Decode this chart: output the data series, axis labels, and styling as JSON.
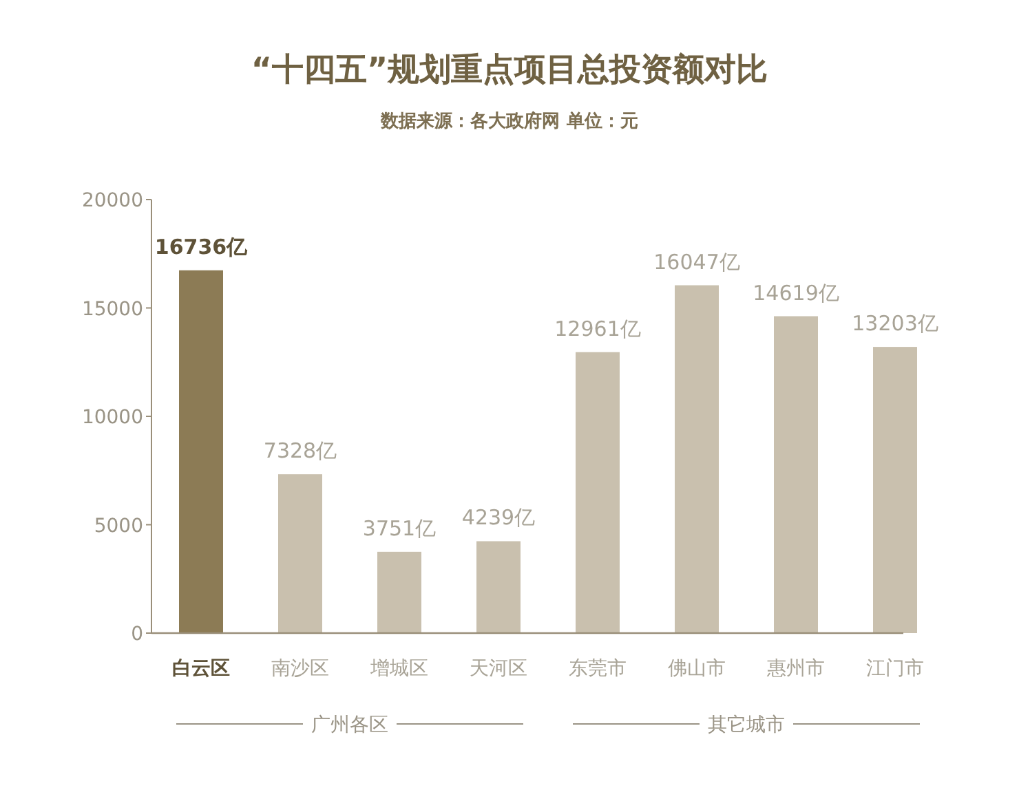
{
  "chart_data": {
    "type": "bar",
    "title": "“十四五”规划重点项目总投资额对比",
    "subtitle": "数据来源：各大政府网  单位：元",
    "categories": [
      "白云区",
      "南沙区",
      "增城区",
      "天河区",
      "东莞市",
      "佛山市",
      "惠州市",
      "江门市"
    ],
    "values": [
      16736,
      7328,
      3751,
      4239,
      12961,
      16047,
      14619,
      13203
    ],
    "value_labels": [
      "16736亿",
      "7328亿",
      "3751亿",
      "4239亿",
      "12961亿",
      "16047亿",
      "14619亿",
      "13203亿"
    ],
    "colors": [
      "#8c7b55",
      "#c9c0ae",
      "#c9c0ae",
      "#c9c0ae",
      "#c9c0ae",
      "#c9c0ae",
      "#c9c0ae",
      "#c9c0ae"
    ],
    "ylim": [
      0,
      20000
    ],
    "yticks": [
      0,
      5000,
      10000,
      15000,
      20000
    ],
    "annotations": [
      "广州各区",
      "其它城市"
    ]
  }
}
